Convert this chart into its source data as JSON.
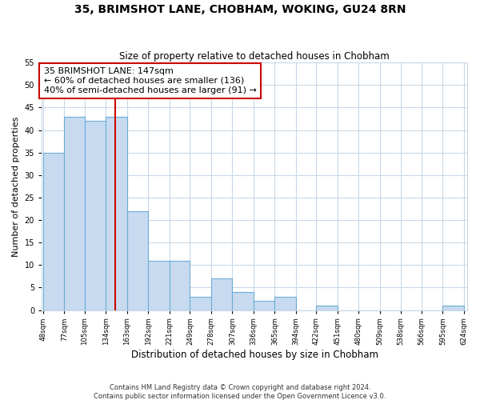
{
  "title": "35, BRIMSHOT LANE, CHOBHAM, WOKING, GU24 8RN",
  "subtitle": "Size of property relative to detached houses in Chobham",
  "xlabel": "Distribution of detached houses by size in Chobham",
  "ylabel": "Number of detached properties",
  "bar_edges": [
    48,
    77,
    105,
    134,
    163,
    192,
    221,
    249,
    278,
    307,
    336,
    365,
    394,
    422,
    451,
    480,
    509,
    538,
    566,
    595,
    624
  ],
  "bar_heights": [
    35,
    43,
    42,
    43,
    22,
    11,
    11,
    3,
    7,
    4,
    2,
    3,
    0,
    1,
    0,
    0,
    0,
    0,
    0,
    1
  ],
  "tick_labels": [
    "48sqm",
    "77sqm",
    "105sqm",
    "134sqm",
    "163sqm",
    "192sqm",
    "221sqm",
    "249sqm",
    "278sqm",
    "307sqm",
    "336sqm",
    "365sqm",
    "394sqm",
    "422sqm",
    "451sqm",
    "480sqm",
    "509sqm",
    "538sqm",
    "566sqm",
    "595sqm",
    "624sqm"
  ],
  "bar_color": "#c8daf0",
  "bar_edge_color": "#6aaed6",
  "vline_x": 147,
  "vline_color": "#cc0000",
  "ylim": [
    0,
    55
  ],
  "yticks": [
    0,
    5,
    10,
    15,
    20,
    25,
    30,
    35,
    40,
    45,
    50,
    55
  ],
  "annotation_title": "35 BRIMSHOT LANE: 147sqm",
  "annotation_line1": "← 60% of detached houses are smaller (136)",
  "annotation_line2": "40% of semi-detached houses are larger (91) →",
  "annotation_box_color": "#ffffff",
  "annotation_box_edge": "#cc0000",
  "footer_line1": "Contains HM Land Registry data © Crown copyright and database right 2024.",
  "footer_line2": "Contains public sector information licensed under the Open Government Licence v3.0.",
  "background_color": "#ffffff",
  "grid_color": "#c8d8e8"
}
